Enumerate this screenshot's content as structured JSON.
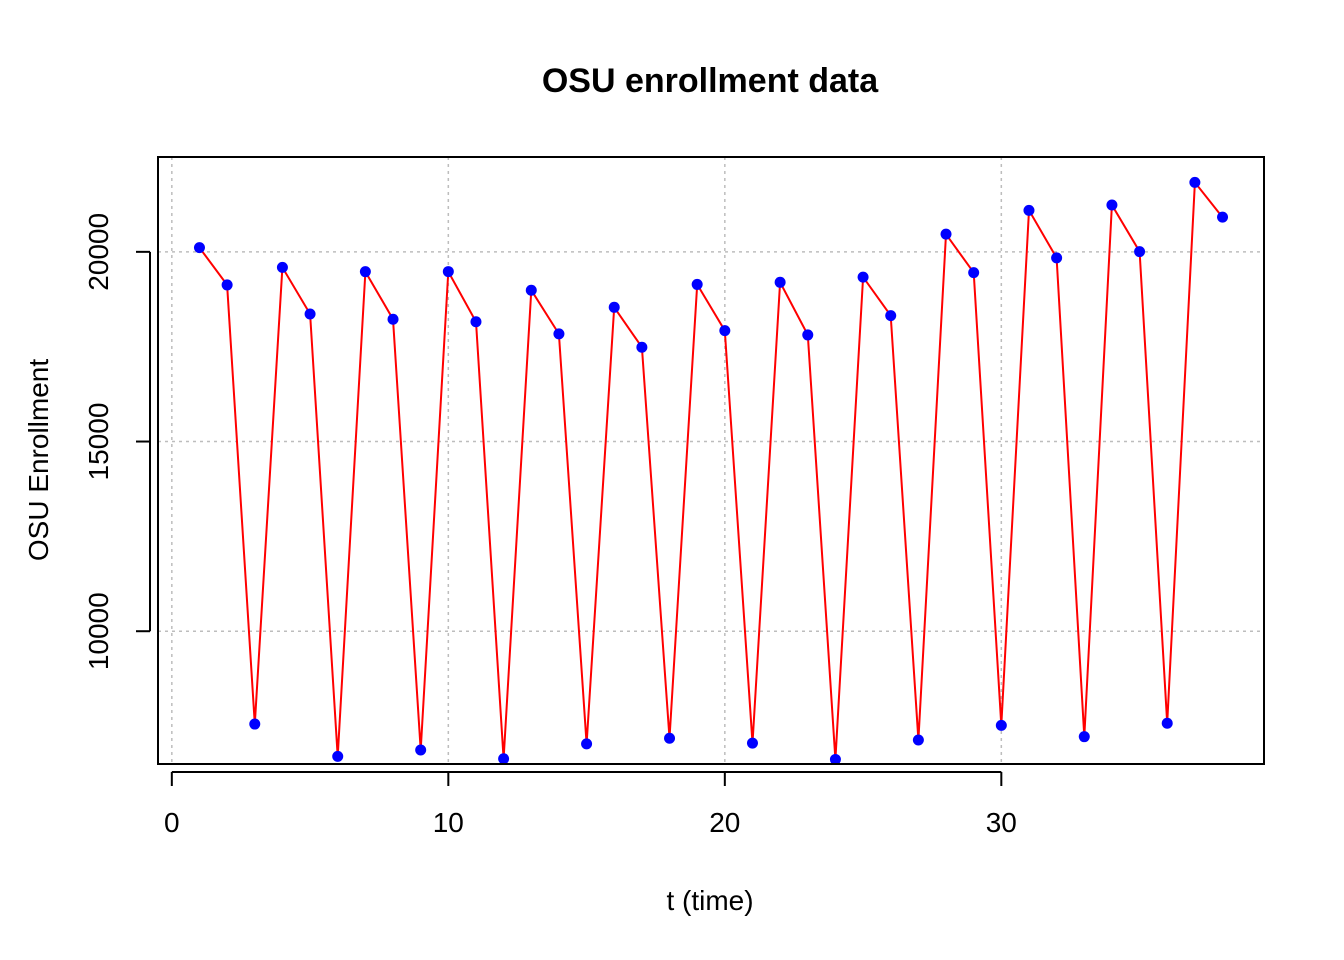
{
  "chart_data": {
    "type": "line",
    "title": "OSU enrollment data",
    "xlabel": "t (time)",
    "ylabel": "OSU Enrollment",
    "xlim": [
      -0.5,
      39.5
    ],
    "ylim": [
      6500,
      22500
    ],
    "xticks": [
      0,
      10,
      20,
      30
    ],
    "yticks": [
      10000,
      15000,
      20000
    ],
    "grid": true,
    "line_color": "#ff0000",
    "point_color": "#0000ff",
    "grid_color": "#bdbdbd",
    "series": [
      {
        "x": [
          1,
          2,
          3,
          4,
          5,
          6,
          7,
          8,
          9,
          10,
          11,
          12,
          13,
          14,
          15,
          16,
          17,
          18,
          19,
          20,
          21,
          22,
          23,
          24,
          25,
          26,
          27,
          28,
          29,
          30,
          31,
          32,
          33,
          34,
          35,
          36,
          37,
          38
        ],
        "values": [
          20110,
          19128,
          7553,
          19591,
          18361,
          6702,
          19477,
          18224,
          6868,
          19480,
          18157,
          6637,
          18988,
          17838,
          7030,
          18538,
          17486,
          7180,
          19141,
          17924,
          7049,
          19197,
          17810,
          6620,
          19333,
          18319,
          7133,
          20466,
          19453,
          7519,
          21094,
          19840,
          7220,
          21235,
          20006,
          7573,
          21830,
          20914
        ]
      }
    ]
  }
}
